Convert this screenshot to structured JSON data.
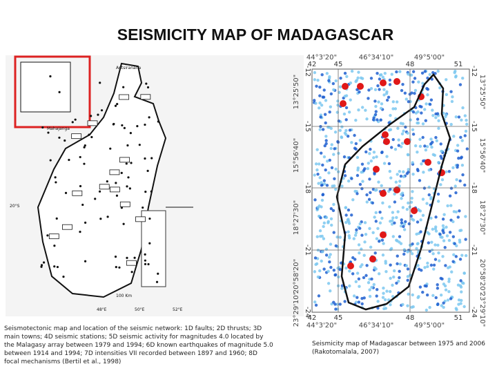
{
  "title": "SEISMICITY MAP OF MADAGASCAR",
  "left_figure": {
    "place_labels": [
      "Antsiranana",
      "Mahajanga"
    ],
    "lat_label": "20°S",
    "lon_labels": [
      "48°E",
      "50°E",
      "52°E"
    ],
    "scale_label": "100 Km",
    "caption_lines": [
      "Seismotectonic map and location of the seismic network: 1D faults; 2D thrusts; 3D",
      "main towns; 4D seismic stations; 5D seismic activity for magnitudes 4.0 located by",
      "the Malagasy array between 1979 and 1994; 6D known earthquakes of magnitude 5.0",
      "between 1914 and 1994; 7D intensities VII recorded between 1897 and 1960; 8D",
      "focal mechanisms (Bertil et al., 1998)"
    ]
  },
  "right_figure": {
    "lon_dms_labels": [
      "44°3'20\"",
      "46°34'10\"",
      "49°5'00\""
    ],
    "lon_ticks": [
      "42",
      "45",
      "48",
      "51"
    ],
    "lat_ticks": [
      "-12",
      "-15",
      "-18",
      "-21",
      "-24"
    ],
    "lat_dms_labels": [
      "13°25'50\"",
      "15°56'40\"",
      "18°27'30\"",
      "20°58'20\"",
      "23°29'10\""
    ],
    "caption_lines": [
      "Seismicity map of Madagascar between 1975 and 2006",
      "(Rakotomalala, 2007)"
    ]
  }
}
